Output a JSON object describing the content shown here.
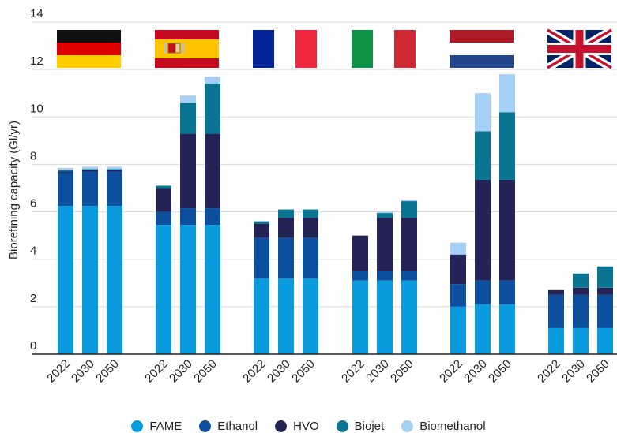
{
  "chart_data": {
    "type": "bar",
    "stacked": true,
    "ylabel": "Biorefining capacity (Gl/yr)",
    "xlabel": "",
    "title": "",
    "ylim": [
      0,
      14
    ],
    "yticks": [
      0,
      2,
      4,
      6,
      8,
      10,
      12,
      14
    ],
    "grid": true,
    "legend_position": "bottom",
    "years": [
      "2022",
      "2030",
      "2050"
    ],
    "groups": [
      {
        "country": "Germany",
        "flag": "germany-flag",
        "stacks": [
          {
            "year": "2022",
            "FAME": 6.25,
            "Ethanol": 1.4,
            "HVO": 0.05,
            "Biojet": 0.05,
            "Biomethanol": 0.1
          },
          {
            "year": "2030",
            "FAME": 6.25,
            "Ethanol": 1.45,
            "HVO": 0.05,
            "Biojet": 0.05,
            "Biomethanol": 0.1
          },
          {
            "year": "2050",
            "FAME": 6.25,
            "Ethanol": 1.45,
            "HVO": 0.05,
            "Biojet": 0.05,
            "Biomethanol": 0.1
          }
        ]
      },
      {
        "country": "Spain",
        "flag": "spain-flag",
        "stacks": [
          {
            "year": "2022",
            "FAME": 5.45,
            "Ethanol": 0.55,
            "HVO": 1.0,
            "Biojet": 0.1,
            "Biomethanol": 0.0
          },
          {
            "year": "2030",
            "FAME": 5.45,
            "Ethanol": 0.7,
            "HVO": 3.15,
            "Biojet": 1.3,
            "Biomethanol": 0.3
          },
          {
            "year": "2050",
            "FAME": 5.45,
            "Ethanol": 0.7,
            "HVO": 3.15,
            "Biojet": 2.1,
            "Biomethanol": 0.3
          }
        ]
      },
      {
        "country": "France",
        "flag": "france-flag",
        "stacks": [
          {
            "year": "2022",
            "FAME": 3.2,
            "Ethanol": 1.7,
            "HVO": 0.6,
            "Biojet": 0.1,
            "Biomethanol": 0.0
          },
          {
            "year": "2030",
            "FAME": 3.2,
            "Ethanol": 1.7,
            "HVO": 0.85,
            "Biojet": 0.35,
            "Biomethanol": 0.0
          },
          {
            "year": "2050",
            "FAME": 3.2,
            "Ethanol": 1.7,
            "HVO": 0.85,
            "Biojet": 0.35,
            "Biomethanol": 0.0
          }
        ]
      },
      {
        "country": "Italy",
        "flag": "italy-flag",
        "stacks": [
          {
            "year": "2022",
            "FAME": 3.1,
            "Ethanol": 0.4,
            "HVO": 1.5,
            "Biojet": 0.0,
            "Biomethanol": 0.0
          },
          {
            "year": "2030",
            "FAME": 3.1,
            "Ethanol": 0.4,
            "HVO": 2.25,
            "Biojet": 0.2,
            "Biomethanol": 0.05
          },
          {
            "year": "2050",
            "FAME": 3.1,
            "Ethanol": 0.4,
            "HVO": 2.25,
            "Biojet": 0.7,
            "Biomethanol": 0.05
          }
        ]
      },
      {
        "country": "Netherlands",
        "flag": "netherlands-flag",
        "stacks": [
          {
            "year": "2022",
            "FAME": 2.0,
            "Ethanol": 0.95,
            "HVO": 1.25,
            "Biojet": 0.0,
            "Biomethanol": 0.5
          },
          {
            "year": "2030",
            "FAME": 2.1,
            "Ethanol": 1.0,
            "HVO": 4.25,
            "Biojet": 2.05,
            "Biomethanol": 1.6
          },
          {
            "year": "2050",
            "FAME": 2.1,
            "Ethanol": 1.0,
            "HVO": 4.25,
            "Biojet": 2.85,
            "Biomethanol": 1.6
          }
        ]
      },
      {
        "country": "United Kingdom",
        "flag": "uk-flag",
        "stacks": [
          {
            "year": "2022",
            "FAME": 1.1,
            "Ethanol": 1.4,
            "HVO": 0.2,
            "Biojet": 0.0,
            "Biomethanol": 0.0
          },
          {
            "year": "2030",
            "FAME": 1.1,
            "Ethanol": 1.4,
            "HVO": 0.3,
            "Biojet": 0.6,
            "Biomethanol": 0.0
          },
          {
            "year": "2050",
            "FAME": 1.1,
            "Ethanol": 1.4,
            "HVO": 0.3,
            "Biojet": 0.9,
            "Biomethanol": 0.0
          }
        ]
      }
    ],
    "series": [
      {
        "name": "FAME",
        "color": "#0a9bdf"
      },
      {
        "name": "Ethanol",
        "color": "#0c4f9e"
      },
      {
        "name": "HVO",
        "color": "#232356"
      },
      {
        "name": "Biojet",
        "color": "#0a7592"
      },
      {
        "name": "Biomethanol",
        "color": "#a5cff4"
      }
    ]
  },
  "legend": {
    "items": [
      {
        "label": "FAME",
        "color": "#0a9bdf"
      },
      {
        "label": "Ethanol",
        "color": "#0c4f9e"
      },
      {
        "label": "HVO",
        "color": "#232356"
      },
      {
        "label": "Biojet",
        "color": "#0a7592"
      },
      {
        "label": "Biomethanol",
        "color": "#a5cff4"
      }
    ]
  }
}
